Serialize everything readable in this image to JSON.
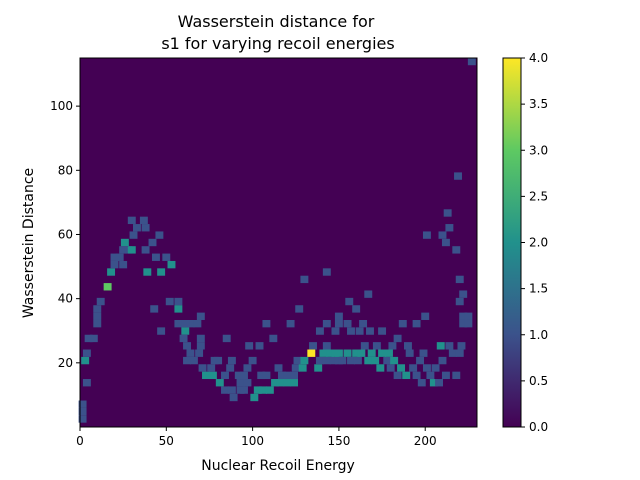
{
  "chart_data": {
    "type": "heatmap",
    "title_line1": "Wasserstein distance for",
    "title_line2": "s1 for varying recoil energies",
    "xlabel": "Nuclear Recoil Energy",
    "ylabel": "Wasserstein Distance",
    "xlim": [
      0,
      230
    ],
    "ylim": [
      0,
      115
    ],
    "xticks": [
      0,
      50,
      100,
      150,
      200
    ],
    "yticks": [
      20,
      40,
      60,
      80,
      100
    ],
    "colorbar": {
      "min": 0,
      "max": 4,
      "ticks": [
        "0.0",
        "0.5",
        "1.0",
        "1.5",
        "2.0",
        "2.5",
        "3.0",
        "3.5",
        "4.0"
      ]
    },
    "colormap": [
      "#440154",
      "#3b528b",
      "#21918c",
      "#5ec962",
      "#fde725"
    ],
    "grid": false,
    "bin_size": {
      "x": 4.6,
      "y": 2.3
    },
    "cells": [
      [
        1.5,
        2.5,
        1
      ],
      [
        1.5,
        4.8,
        1
      ],
      [
        1.5,
        7.1,
        1
      ],
      [
        4,
        13.8,
        1
      ],
      [
        3,
        20.7,
        2
      ],
      [
        4,
        23,
        1
      ],
      [
        5,
        27.6,
        1
      ],
      [
        8,
        27.6,
        1
      ],
      [
        10,
        32.2,
        1
      ],
      [
        10,
        34.5,
        1
      ],
      [
        10,
        36.8,
        1
      ],
      [
        12,
        39.1,
        1
      ],
      [
        16,
        43.7,
        3
      ],
      [
        18,
        48.3,
        2
      ],
      [
        20,
        50.6,
        1
      ],
      [
        20,
        52.9,
        1
      ],
      [
        23,
        52.9,
        1
      ],
      [
        25,
        50.6,
        1
      ],
      [
        25,
        55.2,
        1
      ],
      [
        26,
        57.5,
        2
      ],
      [
        28,
        55.2,
        1
      ],
      [
        30,
        55.2,
        2
      ],
      [
        31,
        59.8,
        1
      ],
      [
        30,
        64.4,
        1
      ],
      [
        33,
        62.1,
        1
      ],
      [
        37,
        64.4,
        1
      ],
      [
        38,
        62.1,
        1
      ],
      [
        38,
        55.2,
        1
      ],
      [
        39,
        48.3,
        2
      ],
      [
        42,
        57.5,
        1
      ],
      [
        44,
        52.9,
        1
      ],
      [
        46,
        59.8,
        1
      ],
      [
        47,
        48.3,
        2
      ],
      [
        50,
        52.9,
        1
      ],
      [
        53,
        50.6,
        2
      ],
      [
        43,
        36.8,
        1
      ],
      [
        47,
        29.9,
        1
      ],
      [
        52,
        39.1,
        1
      ],
      [
        57,
        39.1,
        1
      ],
      [
        57,
        36.8,
        2
      ],
      [
        57,
        32.2,
        1
      ],
      [
        61,
        32.2,
        1
      ],
      [
        61,
        29.9,
        2
      ],
      [
        64,
        32.2,
        1
      ],
      [
        68,
        32.2,
        1
      ],
      [
        70,
        34.5,
        1
      ],
      [
        70,
        27.6,
        1
      ],
      [
        62,
        25.3,
        1
      ],
      [
        64,
        23,
        1
      ],
      [
        66,
        20.7,
        1
      ],
      [
        69,
        23,
        1
      ],
      [
        70,
        25.3,
        1
      ],
      [
        62,
        20.7,
        1
      ],
      [
        71,
        18.4,
        1
      ],
      [
        73,
        16.1,
        2
      ],
      [
        77,
        16.1,
        2
      ],
      [
        76,
        18.4,
        1
      ],
      [
        78,
        20.7,
        1
      ],
      [
        80,
        20.7,
        1
      ],
      [
        81,
        13.8,
        2
      ],
      [
        84,
        11.5,
        1
      ],
      [
        84,
        16.1,
        1
      ],
      [
        87,
        18.4,
        1
      ],
      [
        88,
        11.5,
        1
      ],
      [
        88,
        20.7,
        1
      ],
      [
        89,
        9.2,
        1
      ],
      [
        92,
        16.1,
        1
      ],
      [
        93,
        11.5,
        1
      ],
      [
        93,
        13.8,
        1
      ],
      [
        95,
        11.5,
        1
      ],
      [
        95,
        16.1,
        1
      ],
      [
        97,
        13.8,
        1
      ],
      [
        97,
        18.4,
        1
      ],
      [
        98,
        25.3,
        1
      ],
      [
        100,
        20.7,
        1
      ],
      [
        101,
        9.2,
        2
      ],
      [
        103,
        11.5,
        2
      ],
      [
        105,
        16.1,
        1
      ],
      [
        106,
        11.5,
        2
      ],
      [
        108,
        16.1,
        1
      ],
      [
        110,
        11.5,
        2
      ],
      [
        113,
        13.8,
        2
      ],
      [
        115,
        18.4,
        1
      ],
      [
        116,
        13.8,
        2
      ],
      [
        117,
        16.1,
        1
      ],
      [
        120,
        13.8,
        2
      ],
      [
        120,
        16.1,
        1
      ],
      [
        124,
        13.8,
        2
      ],
      [
        124,
        16.1,
        1
      ],
      [
        125,
        18.4,
        1
      ],
      [
        126,
        20.7,
        1
      ],
      [
        129,
        18.4,
        2
      ],
      [
        130,
        20.7,
        2
      ],
      [
        134,
        23,
        4
      ],
      [
        135,
        25.3,
        1
      ],
      [
        138,
        18.4,
        2
      ],
      [
        139,
        20.7,
        1
      ],
      [
        141,
        23,
        2
      ],
      [
        143,
        25.3,
        1
      ],
      [
        143,
        20.7,
        1
      ],
      [
        145,
        23,
        2
      ],
      [
        147,
        20.7,
        1
      ],
      [
        148,
        23,
        2
      ],
      [
        150,
        20.7,
        1
      ],
      [
        150,
        23,
        2
      ],
      [
        152,
        20.7,
        1
      ],
      [
        155,
        23,
        2
      ],
      [
        157,
        20.7,
        1
      ],
      [
        160,
        23,
        2
      ],
      [
        161,
        20.7,
        1
      ],
      [
        163,
        23,
        2
      ],
      [
        165,
        25.3,
        1
      ],
      [
        167,
        20.7,
        2
      ],
      [
        169,
        23,
        2
      ],
      [
        171,
        20.7,
        2
      ],
      [
        172,
        25.3,
        1
      ],
      [
        174,
        18.4,
        2
      ],
      [
        175,
        23,
        2
      ],
      [
        178,
        20.7,
        1
      ],
      [
        179,
        23,
        2
      ],
      [
        180,
        18.4,
        1
      ],
      [
        182,
        20.7,
        2
      ],
      [
        184,
        16.1,
        1
      ],
      [
        186,
        18.4,
        2
      ],
      [
        189,
        16.1,
        2
      ],
      [
        191,
        23,
        1
      ],
      [
        193,
        18.4,
        1
      ],
      [
        195,
        16.1,
        1
      ],
      [
        197,
        20.7,
        1
      ],
      [
        198,
        13.8,
        1
      ],
      [
        199,
        23,
        1
      ],
      [
        201,
        18.4,
        1
      ],
      [
        203,
        16.1,
        1
      ],
      [
        205,
        13.8,
        2
      ],
      [
        206,
        18.4,
        1
      ],
      [
        208,
        13.8,
        1
      ],
      [
        209,
        25.3,
        2
      ],
      [
        210,
        20.7,
        1
      ],
      [
        212,
        16.1,
        1
      ],
      [
        214,
        25.3,
        1
      ],
      [
        216,
        23,
        1
      ],
      [
        218,
        16.1,
        1
      ],
      [
        220,
        23,
        1
      ],
      [
        221,
        25.3,
        1
      ],
      [
        139,
        29.9,
        1
      ],
      [
        143,
        32.2,
        1
      ],
      [
        148,
        29.9,
        1
      ],
      [
        150,
        32.2,
        1
      ],
      [
        155,
        32.2,
        1
      ],
      [
        156,
        39.1,
        1
      ],
      [
        157,
        29.9,
        1
      ],
      [
        160,
        36.8,
        1
      ],
      [
        162,
        29.9,
        1
      ],
      [
        164,
        32.2,
        1
      ],
      [
        168,
        29.9,
        1
      ],
      [
        175,
        29.9,
        1
      ],
      [
        181,
        25.3,
        1
      ],
      [
        184,
        27.6,
        1
      ],
      [
        187,
        32.2,
        1
      ],
      [
        190,
        25.3,
        1
      ],
      [
        195,
        32.2,
        1
      ],
      [
        200,
        34.5,
        1
      ],
      [
        201,
        59.8,
        1
      ],
      [
        210,
        59.8,
        1
      ],
      [
        212,
        57.5,
        1
      ],
      [
        213,
        66.7,
        1
      ],
      [
        214,
        62.1,
        1
      ],
      [
        218,
        55.2,
        1
      ],
      [
        219,
        78.2,
        1
      ],
      [
        220,
        39.1,
        1
      ],
      [
        220,
        46,
        1
      ],
      [
        222,
        32.2,
        1
      ],
      [
        222,
        34.5,
        1
      ],
      [
        222,
        41.4,
        1
      ],
      [
        225,
        32.2,
        1
      ],
      [
        225,
        34.5,
        1
      ],
      [
        227,
        113.9,
        1
      ],
      [
        122,
        32.2,
        1
      ],
      [
        127,
        36.8,
        1
      ],
      [
        130,
        46,
        1
      ],
      [
        143,
        48.3,
        1
      ],
      [
        150,
        34.5,
        1
      ],
      [
        167,
        41.4,
        1
      ],
      [
        60,
        27.6,
        1
      ],
      [
        85,
        27.6,
        1
      ],
      [
        104,
        25.3,
        1
      ],
      [
        108,
        32.2,
        1
      ],
      [
        112,
        27.6,
        1
      ]
    ]
  }
}
